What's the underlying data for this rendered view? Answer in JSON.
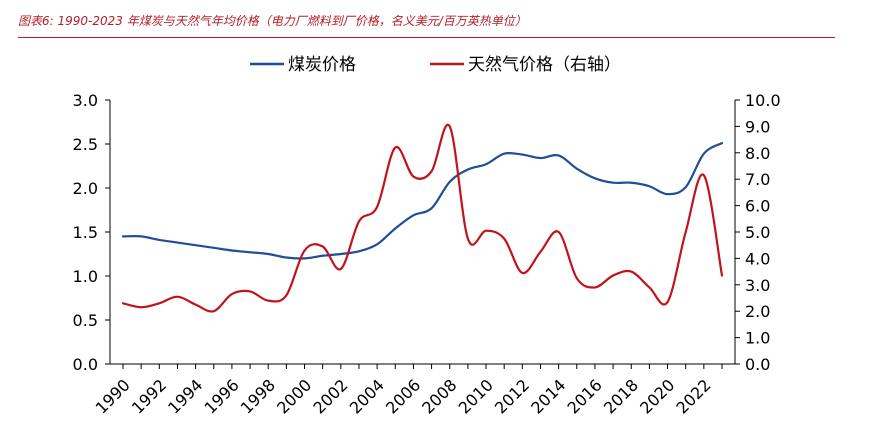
{
  "caption": "图表6:  1990-2023 年煤炭与天然气年均价格（电力厂燃料到厂价格，名义美元/百万英热单位）",
  "chart_data": {
    "type": "line",
    "title": "",
    "xlabel": "",
    "ylabel": "",
    "y2label": "",
    "legend_position": "top-center",
    "grid": false,
    "x": [
      1990,
      1991,
      1992,
      1993,
      1994,
      1995,
      1996,
      1997,
      1998,
      1999,
      2000,
      2001,
      2002,
      2003,
      2004,
      2005,
      2006,
      2007,
      2008,
      2009,
      2010,
      2011,
      2012,
      2013,
      2014,
      2015,
      2016,
      2017,
      2018,
      2019,
      2020,
      2021,
      2022,
      2023
    ],
    "x_tick_labels": [
      "1990",
      "1992",
      "1994",
      "1996",
      "1998",
      "2000",
      "2002",
      "2004",
      "2006",
      "2008",
      "2010",
      "2012",
      "2014",
      "2016",
      "2018",
      "2020",
      "2022"
    ],
    "ylim": [
      0,
      3.0
    ],
    "y_tick_labels": [
      "0.0",
      "0.5",
      "1.0",
      "1.5",
      "2.0",
      "2.5",
      "3.0"
    ],
    "y2lim": [
      0,
      10.0
    ],
    "y2_tick_labels": [
      "0.0",
      "1.0",
      "2.0",
      "3.0",
      "4.0",
      "5.0",
      "6.0",
      "7.0",
      "8.0",
      "9.0",
      "10.0"
    ],
    "series": [
      {
        "name": "煤炭价格",
        "axis": "left",
        "color": "#1f4e96",
        "values": [
          1.45,
          1.45,
          1.41,
          1.38,
          1.35,
          1.32,
          1.29,
          1.27,
          1.25,
          1.21,
          1.2,
          1.23,
          1.25,
          1.28,
          1.36,
          1.54,
          1.69,
          1.77,
          2.07,
          2.21,
          2.27,
          2.39,
          2.38,
          2.34,
          2.37,
          2.22,
          2.11,
          2.06,
          2.06,
          2.02,
          1.93,
          2.01,
          2.39,
          2.51
        ]
      },
      {
        "name": "天然气价格（右轴）",
        "axis": "right",
        "color": "#c0141c",
        "values": [
          2.3,
          2.15,
          2.3,
          2.55,
          2.25,
          2.0,
          2.65,
          2.75,
          2.4,
          2.6,
          4.3,
          4.45,
          3.6,
          5.4,
          5.95,
          8.2,
          7.1,
          7.3,
          9.0,
          4.75,
          5.05,
          4.75,
          3.45,
          4.25,
          5.0,
          3.25,
          2.9,
          3.35,
          3.5,
          2.9,
          2.35,
          5.0,
          7.15,
          3.35
        ]
      }
    ]
  }
}
